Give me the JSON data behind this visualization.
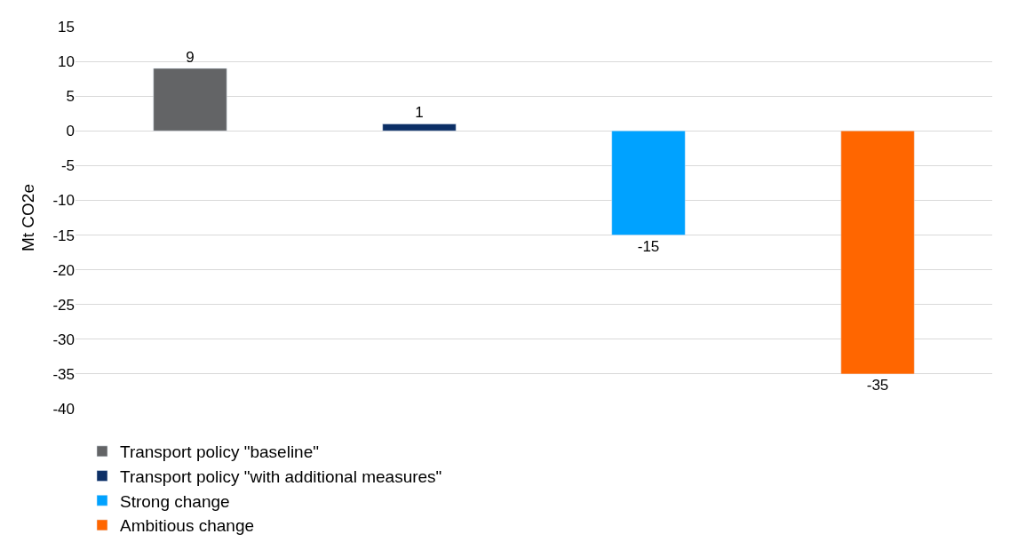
{
  "chart_data": {
    "type": "bar",
    "ylabel": "Mt CO2e",
    "categories": [
      null,
      null,
      null,
      null
    ],
    "series": [
      {
        "name": "Transport policy \"baseline\"",
        "color": "#636466",
        "values": [
          9,
          null,
          null,
          null
        ]
      },
      {
        "name": "Transport policy \"with additional measures\"",
        "color": "#0c2f66",
        "values": [
          null,
          1,
          null,
          null
        ]
      },
      {
        "name": "Strong change",
        "color": "#00a2ff",
        "values": [
          null,
          null,
          -15,
          null
        ]
      },
      {
        "name": "Ambitious change",
        "color": "#ff6600",
        "values": [
          null,
          null,
          null,
          -35
        ]
      }
    ],
    "ylim": [
      -40,
      15
    ],
    "yticks": [
      -40,
      -35,
      -30,
      -25,
      -20,
      -15,
      -10,
      -5,
      0,
      5,
      10,
      15
    ],
    "grid": "y",
    "legend": "bottom",
    "data_labels": true
  }
}
